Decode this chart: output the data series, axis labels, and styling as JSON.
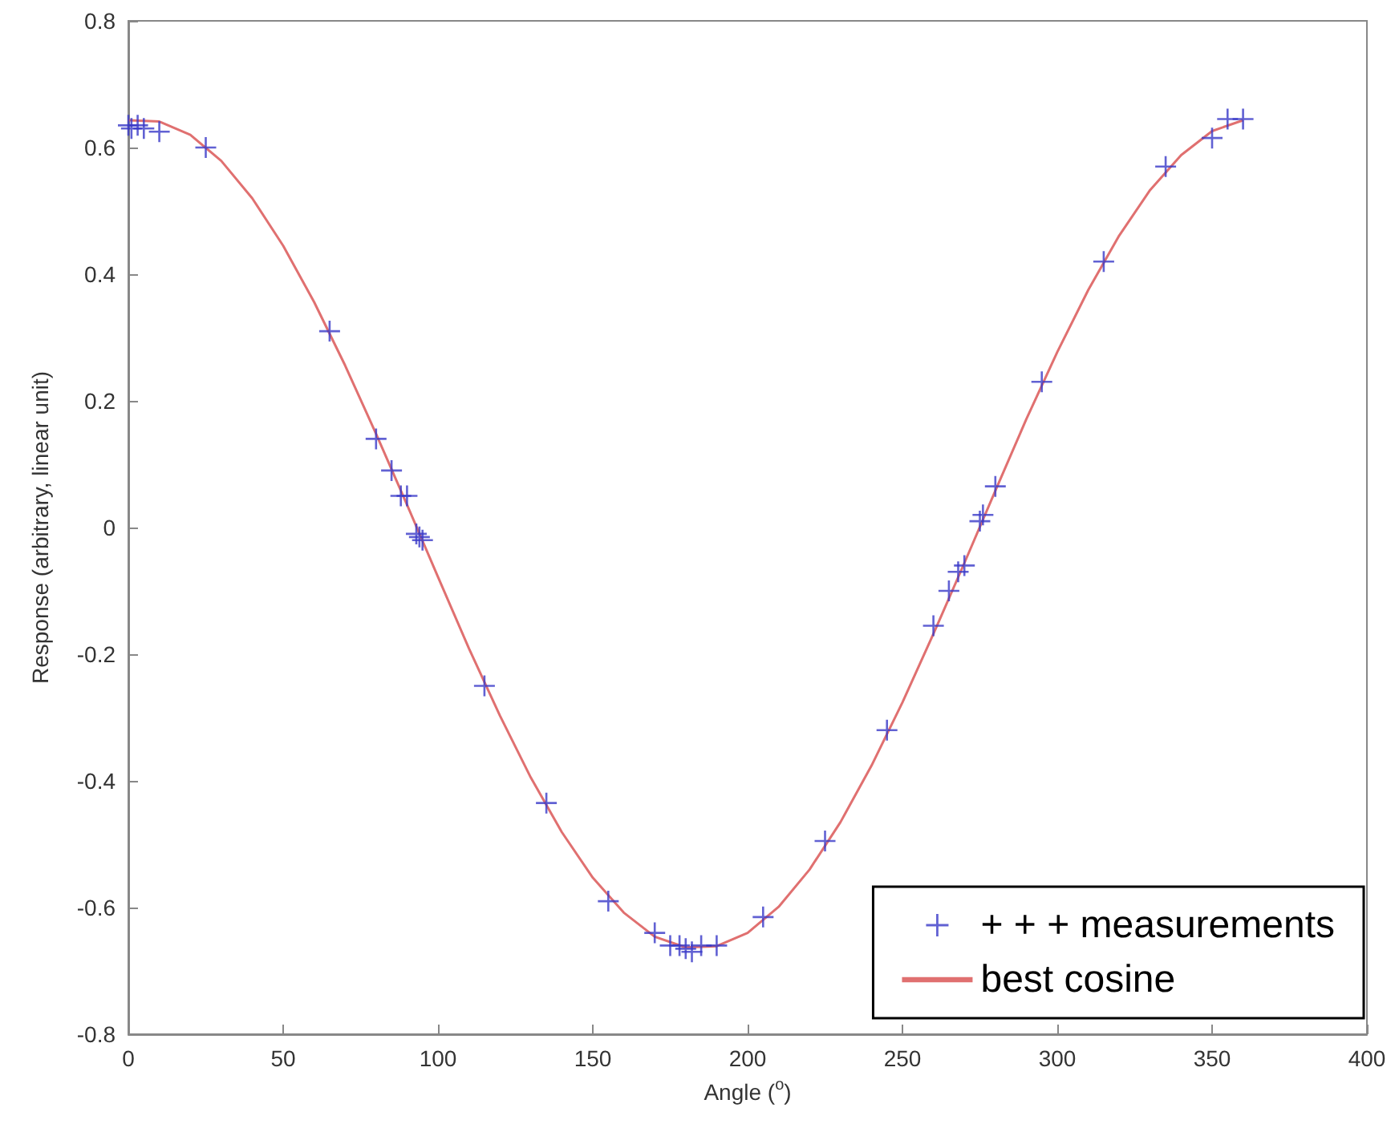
{
  "chart_data": {
    "type": "scatter",
    "xlabel": "Angle ($^{o}$)",
    "ylabel": "Response (arbitrary, linear unit)",
    "xlim": [
      0,
      400
    ],
    "xticks": [
      0,
      50,
      100,
      150,
      200,
      250,
      300,
      350,
      400
    ],
    "ylim": [
      -0.8,
      0.8
    ],
    "yticks": [
      -0.8,
      -0.6,
      -0.4,
      -0.2,
      0,
      0.2,
      0.4,
      0.6,
      0.8
    ],
    "grid": false,
    "legend": "bottom right",
    "marker": "cross",
    "series": [
      {
        "name": "+ + + measurements",
        "color": "#3a3ac8",
        "x": [
          0,
          1,
          3,
          5,
          10,
          25,
          65,
          80,
          85,
          88,
          90,
          93,
          94,
          95,
          115,
          135,
          155,
          170,
          175,
          178,
          180,
          182,
          185,
          190,
          205,
          225,
          245,
          260,
          265,
          268,
          270,
          275,
          276,
          280,
          295,
          315,
          335,
          350,
          355,
          360
        ],
        "values": [
          0.635,
          0.63,
          0.635,
          0.63,
          0.625,
          0.6,
          0.31,
          0.14,
          0.09,
          0.05,
          0.05,
          -0.01,
          -0.015,
          -0.02,
          -0.25,
          -0.435,
          -0.59,
          -0.64,
          -0.66,
          -0.66,
          -0.665,
          -0.67,
          -0.66,
          -0.66,
          -0.615,
          -0.495,
          -0.32,
          -0.155,
          -0.1,
          -0.07,
          -0.06,
          0.01,
          0.02,
          0.065,
          0.23,
          0.42,
          0.57,
          0.615,
          0.645,
          0.645
        ]
      },
      {
        "name": "best cosine",
        "type": "line",
        "color": "#e07070",
        "marker": "none",
        "line_style": "solid",
        "x": [
          0,
          10,
          20,
          30,
          40,
          50,
          60,
          70,
          80,
          90,
          100,
          110,
          120,
          130,
          140,
          150,
          160,
          170,
          180,
          190,
          200,
          210,
          220,
          230,
          240,
          250,
          260,
          270,
          280,
          290,
          300,
          310,
          320,
          330,
          340,
          350,
          360
        ],
        "values": [
          0.643,
          0.641,
          0.62,
          0.579,
          0.52,
          0.445,
          0.356,
          0.256,
          0.148,
          0.036,
          -0.078,
          -0.191,
          -0.297,
          -0.395,
          -0.481,
          -0.553,
          -0.608,
          -0.646,
          -0.663,
          -0.661,
          -0.64,
          -0.599,
          -0.54,
          -0.465,
          -0.376,
          -0.276,
          -0.168,
          -0.056,
          0.058,
          0.171,
          0.277,
          0.375,
          0.461,
          0.533,
          0.588,
          0.626,
          0.643
        ]
      }
    ]
  }
}
